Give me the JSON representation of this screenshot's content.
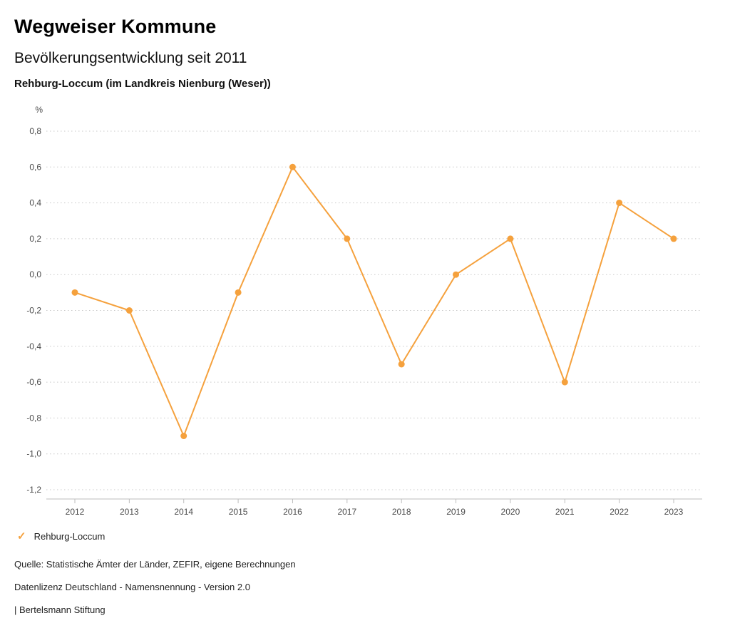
{
  "header": {
    "brand": "Wegweiser Kommune",
    "title": "Bevölkerungsentwicklung seit 2011",
    "subtitle": "Rehburg-Loccum (im Landkreis Nienburg (Weser))"
  },
  "chart_data": {
    "type": "line",
    "title": "Bevölkerungsentwicklung seit 2011",
    "subtitle": "Rehburg-Loccum (im Landkreis Nienburg (Weser))",
    "unit_label": "%",
    "categories": [
      "2012",
      "2013",
      "2014",
      "2015",
      "2016",
      "2017",
      "2018",
      "2019",
      "2020",
      "2021",
      "2022",
      "2023"
    ],
    "series": [
      {
        "name": "Rehburg-Loccum",
        "values": [
          -0.1,
          -0.2,
          -0.9,
          -0.1,
          0.6,
          0.2,
          -0.5,
          0.0,
          0.2,
          -0.6,
          0.4,
          0.2
        ],
        "color": "#F5A13D"
      }
    ],
    "ylim": [
      -1.2,
      0.8
    ],
    "y_ticks": [
      0.8,
      0.6,
      0.4,
      0.2,
      0.0,
      -0.2,
      -0.4,
      -0.6,
      -0.8,
      -1.0,
      -1.2
    ],
    "grid": "dotted-horizontal",
    "legend_position": "bottom-left"
  },
  "legend": {
    "items": [
      {
        "label": "Rehburg-Loccum",
        "color": "#F5A13D",
        "marker": "check",
        "marker_glyph": "✓"
      }
    ]
  },
  "footer": {
    "source": "Quelle: Statistische Ämter der Länder, ZEFIR, eigene Berechnungen",
    "license": "Datenlizenz Deutschland - Namensnennung - Version 2.0",
    "attribution": "| Bertelsmann Stiftung"
  },
  "colors": {
    "accent": "#F5A13D",
    "grid": "#C9C9C9",
    "axis": "#BDBDBD",
    "text": "#1A1A1A"
  }
}
